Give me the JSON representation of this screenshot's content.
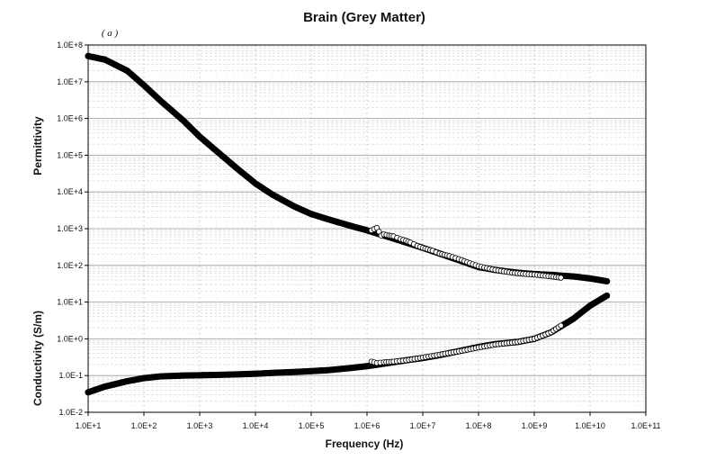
{
  "chart_data": {
    "type": "scatter",
    "title": "Brain (Grey Matter)",
    "panel_label": "( a )",
    "xlabel": "Frequency (Hz)",
    "ylabel_upper": "Permittivity",
    "ylabel_lower": "Conductivity (S/m)",
    "x_scale": "log",
    "y_scale": "log",
    "xlim": [
      10,
      100000000000
    ],
    "ylim": [
      0.01,
      100000000
    ],
    "x_ticks": [
      {
        "value": 10,
        "label": "1.0E+1"
      },
      {
        "value": 100,
        "label": "1.0E+2"
      },
      {
        "value": 1000,
        "label": "1.0E+3"
      },
      {
        "value": 10000,
        "label": "1.0E+4"
      },
      {
        "value": 100000,
        "label": "1.0E+5"
      },
      {
        "value": 1000000,
        "label": "1.0E+6"
      },
      {
        "value": 10000000,
        "label": "1.0E+7"
      },
      {
        "value": 100000000,
        "label": "1.0E+8"
      },
      {
        "value": 1000000000,
        "label": "1.0E+9"
      },
      {
        "value": 10000000000,
        "label": "1.0E+10"
      },
      {
        "value": 100000000000,
        "label": "1.0E+11"
      }
    ],
    "y_ticks": [
      {
        "value": 0.01,
        "label": "1.0E-2"
      },
      {
        "value": 0.1,
        "label": "1.0E-1"
      },
      {
        "value": 1,
        "label": "1.0E+0"
      },
      {
        "value": 10,
        "label": "1.0E+1"
      },
      {
        "value": 100,
        "label": "1.0E+2"
      },
      {
        "value": 1000,
        "label": "1.0E+3"
      },
      {
        "value": 10000,
        "label": "1.0E+4"
      },
      {
        "value": 100000,
        "label": "1.0E+5"
      },
      {
        "value": 1000000,
        "label": "1.0E+6"
      },
      {
        "value": 10000000,
        "label": "1.0E+7"
      },
      {
        "value": 100000000,
        "label": "1.0E+8"
      }
    ],
    "grid": true,
    "colors": {
      "model": "#000000",
      "measured_fill": "#ffffff",
      "measured_edge": "#000000",
      "grid": "#c8c8c8"
    },
    "series": [
      {
        "style": "filled-model-curve",
        "points": [
          [
            10,
            50000000
          ],
          [
            20,
            40000000
          ],
          [
            50,
            20000000
          ],
          [
            100,
            8000000
          ],
          [
            200,
            3000000
          ],
          [
            500,
            900000
          ],
          [
            1000,
            320000
          ],
          [
            2000,
            130000
          ],
          [
            5000,
            40000
          ],
          [
            10000,
            17000
          ],
          [
            20000,
            8500
          ],
          [
            50000,
            4000
          ],
          [
            100000,
            2500
          ],
          [
            200000,
            1800
          ],
          [
            500000,
            1200
          ],
          [
            1000000,
            900
          ],
          [
            2000000,
            650
          ],
          [
            5000000,
            420
          ],
          [
            10000000,
            300
          ],
          [
            20000000,
            210
          ],
          [
            50000000,
            130
          ],
          [
            100000000,
            90
          ],
          [
            200000000,
            75
          ],
          [
            500000000,
            63
          ],
          [
            1000000000,
            58
          ],
          [
            2000000000,
            55
          ],
          [
            5000000000,
            50
          ],
          [
            10000000000,
            44
          ],
          [
            20000000000,
            37
          ]
        ]
      },
      {
        "style": "open-circle-measured",
        "points": [
          [
            1200000,
            900
          ],
          [
            1500000,
            1050
          ],
          [
            1800000,
            650
          ],
          [
            2000000,
            700
          ],
          [
            2500000,
            650
          ],
          [
            3000000,
            620
          ],
          [
            4000000,
            520
          ],
          [
            5000000,
            470
          ],
          [
            6000000,
            420
          ],
          [
            8000000,
            340
          ],
          [
            10000000,
            300
          ],
          [
            15000000,
            250
          ],
          [
            20000000,
            210
          ],
          [
            30000000,
            180
          ],
          [
            50000000,
            140
          ],
          [
            70000000,
            115
          ],
          [
            100000000,
            95
          ],
          [
            200000000,
            75
          ],
          [
            400000000,
            63
          ],
          [
            700000000,
            58
          ],
          [
            1000000000,
            56
          ],
          [
            2000000000,
            50
          ],
          [
            3000000000,
            46
          ]
        ]
      },
      {
        "style": "filled-model-curve",
        "points": [
          [
            10,
            0.035
          ],
          [
            20,
            0.05
          ],
          [
            50,
            0.07
          ],
          [
            100,
            0.085
          ],
          [
            200,
            0.095
          ],
          [
            500,
            0.1
          ],
          [
            1000,
            0.102
          ],
          [
            2000,
            0.104
          ],
          [
            5000,
            0.108
          ],
          [
            10000,
            0.112
          ],
          [
            20000,
            0.118
          ],
          [
            50000,
            0.125
          ],
          [
            100000,
            0.132
          ],
          [
            200000,
            0.14
          ],
          [
            500000,
            0.16
          ],
          [
            1000000,
            0.18
          ],
          [
            2000000,
            0.21
          ],
          [
            5000000,
            0.26
          ],
          [
            10000000,
            0.3
          ],
          [
            20000000,
            0.36
          ],
          [
            50000000,
            0.48
          ],
          [
            100000000,
            0.6
          ],
          [
            200000000,
            0.72
          ],
          [
            500000000,
            0.82
          ],
          [
            1000000000,
            1
          ],
          [
            2000000000,
            1.5
          ],
          [
            5000000000,
            3.5
          ],
          [
            10000000000,
            8
          ],
          [
            20000000000,
            15
          ]
        ]
      },
      {
        "style": "open-circle-measured",
        "points": [
          [
            1200000,
            0.24
          ],
          [
            1500000,
            0.22
          ],
          [
            2000000,
            0.23
          ],
          [
            3000000,
            0.24
          ],
          [
            5000000,
            0.26
          ],
          [
            8000000,
            0.29
          ],
          [
            10000000,
            0.31
          ],
          [
            20000000,
            0.37
          ],
          [
            50000000,
            0.47
          ],
          [
            100000000,
            0.58
          ],
          [
            200000000,
            0.7
          ],
          [
            500000000,
            0.82
          ],
          [
            1000000000,
            1.0
          ],
          [
            2000000000,
            1.5
          ],
          [
            3000000000,
            2.3
          ]
        ]
      }
    ]
  }
}
